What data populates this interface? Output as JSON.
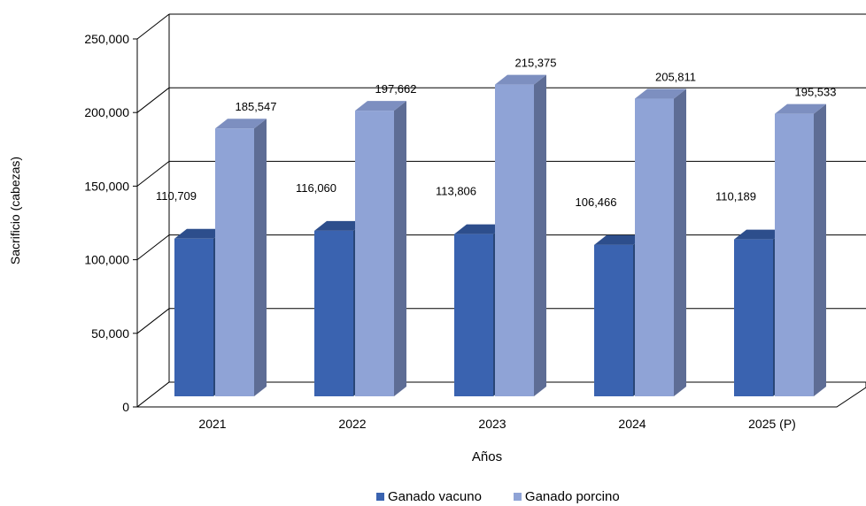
{
  "chart_data": {
    "type": "bar",
    "style": "3d-clustered-column",
    "categories": [
      "2021",
      "2022",
      "2023",
      "2024",
      "2025 (P)"
    ],
    "series": [
      {
        "name": "Ganado vacuno",
        "values": [
          110709,
          116060,
          113806,
          106466,
          110189
        ],
        "color": "#3A63B0"
      },
      {
        "name": "Ganado porcino",
        "values": [
          185547,
          197662,
          215375,
          205811,
          195533
        ],
        "color": "#8FA3D6"
      }
    ],
    "value_labels": {
      "vacuno": [
        "110,709",
        "116,060",
        "113,806",
        "106,466",
        "110,189"
      ],
      "porcino": [
        "185,547",
        "197,662",
        "215,375",
        "205,811",
        "195,533"
      ]
    },
    "xlabel": "Años",
    "ylabel": "Sacrificio (cabezas)",
    "ylim": [
      0,
      250000
    ],
    "yticks": [
      0,
      50000,
      100000,
      150000,
      200000,
      250000
    ],
    "ytick_labels": [
      "0",
      "50,000",
      "100,000",
      "150,000",
      "200,000",
      "250,000"
    ],
    "grid": true,
    "legend_position": "bottom"
  }
}
